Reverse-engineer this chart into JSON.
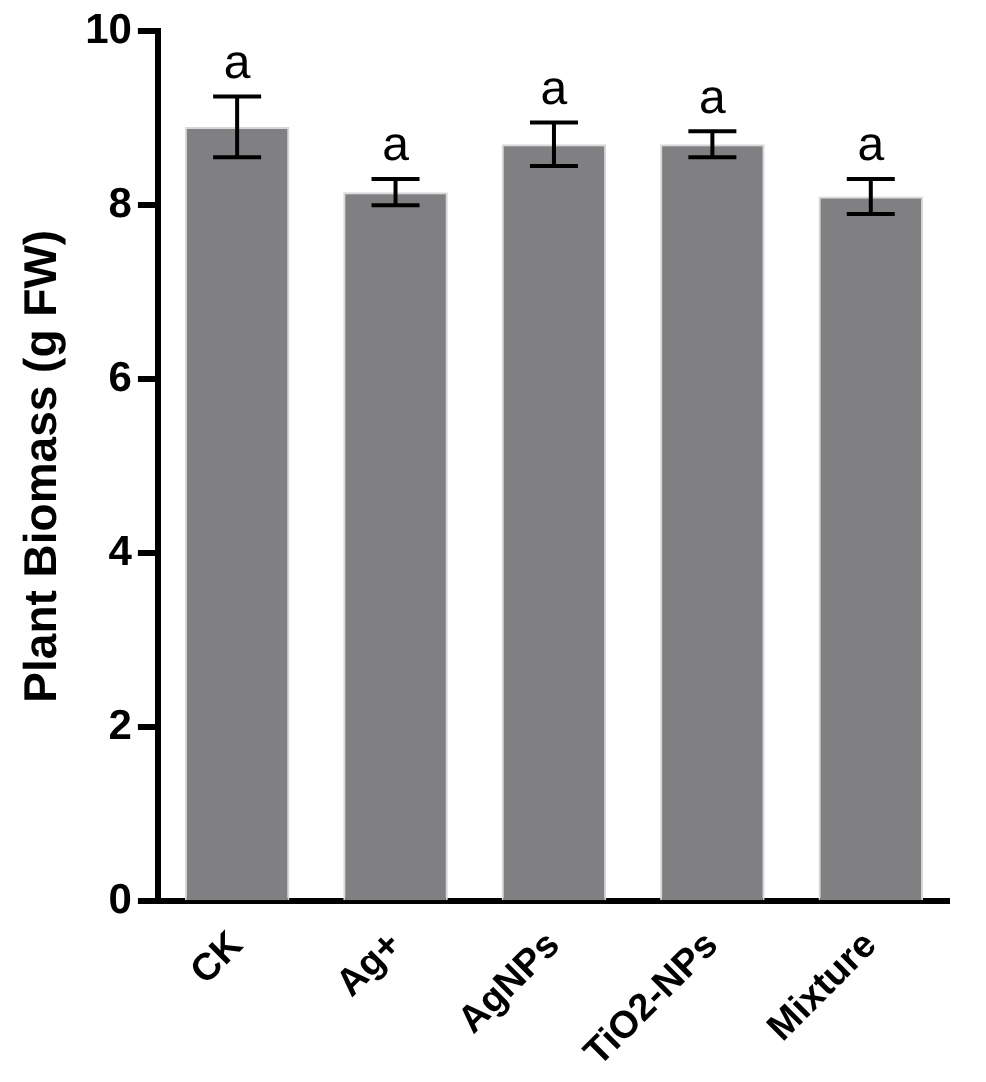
{
  "chart_data": {
    "type": "bar",
    "ylabel": "Plant Biomass (g FW)",
    "categories": [
      "CK",
      "Ag+",
      "AgNPs",
      "TiO2-NPs",
      "Mixture"
    ],
    "values": [
      8.9,
      8.15,
      8.7,
      8.7,
      8.1
    ],
    "errors": [
      0.35,
      0.15,
      0.25,
      0.15,
      0.2
    ],
    "color": "#808083",
    "ylim": [
      0,
      10
    ],
    "yticks": [
      0,
      2,
      4,
      6,
      8,
      10
    ],
    "grid": false,
    "legend": false,
    "annotations": [
      {
        "text": "a",
        "x": "CK",
        "y": 9.25
      },
      {
        "text": "a",
        "x": "Ag+",
        "y": 8.3
      },
      {
        "text": "a",
        "x": "AgNPs",
        "y": 8.95
      },
      {
        "text": "a",
        "x": "TiO2-NPs",
        "y": 8.85
      },
      {
        "text": "a",
        "x": "Mixture",
        "y": 8.3
      }
    ]
  }
}
